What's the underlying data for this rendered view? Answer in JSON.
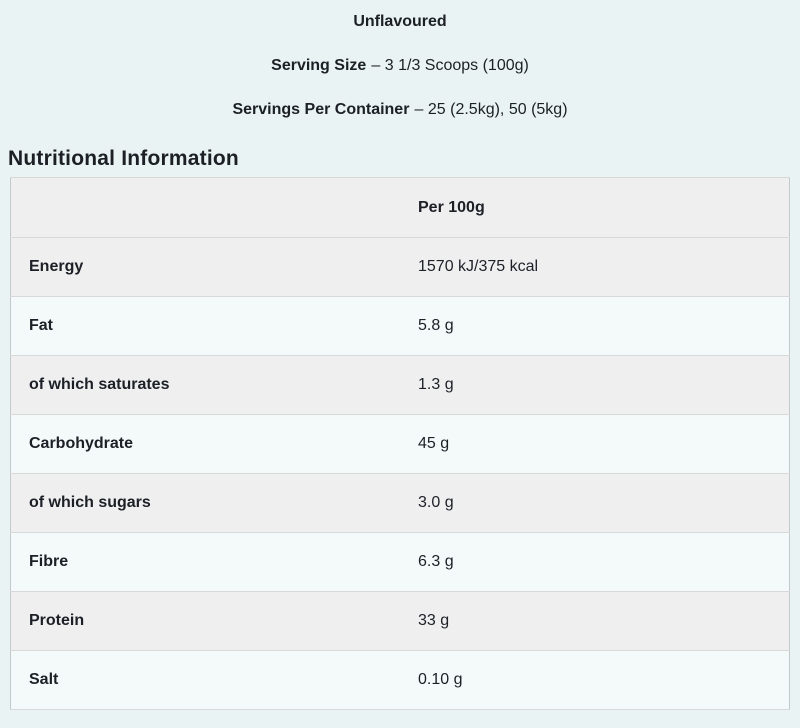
{
  "page": {
    "background_color": "#e9f3f3",
    "text_color": "#1c2026",
    "row_gray_color": "#f0eff0",
    "row_mint_color": "#f4fafa",
    "border_color": "#d8d8d8"
  },
  "product_info": {
    "flavour": "Unflavoured",
    "serving_size_label": "Serving Size",
    "serving_size_value": "– 3 1/3 Scoops (100g)",
    "servings_per_container_label": "Servings Per Container",
    "servings_per_container_value": "– 25 (2.5kg), 50 (5kg)"
  },
  "section": {
    "title": "Nutritional Information"
  },
  "table": {
    "column_header": "Per 100g",
    "rows": [
      {
        "label": "Energy",
        "value": "1570 kJ/375 kcal"
      },
      {
        "label": "Fat",
        "value": "5.8 g"
      },
      {
        "label": "of which saturates",
        "value": "1.3 g"
      },
      {
        "label": "Carbohydrate",
        "value": "45 g"
      },
      {
        "label": "of which sugars",
        "value": "3.0 g"
      },
      {
        "label": "Fibre",
        "value": "6.3 g"
      },
      {
        "label": "Protein",
        "value": "33 g"
      },
      {
        "label": "Salt",
        "value": "0.10 g"
      }
    ]
  }
}
